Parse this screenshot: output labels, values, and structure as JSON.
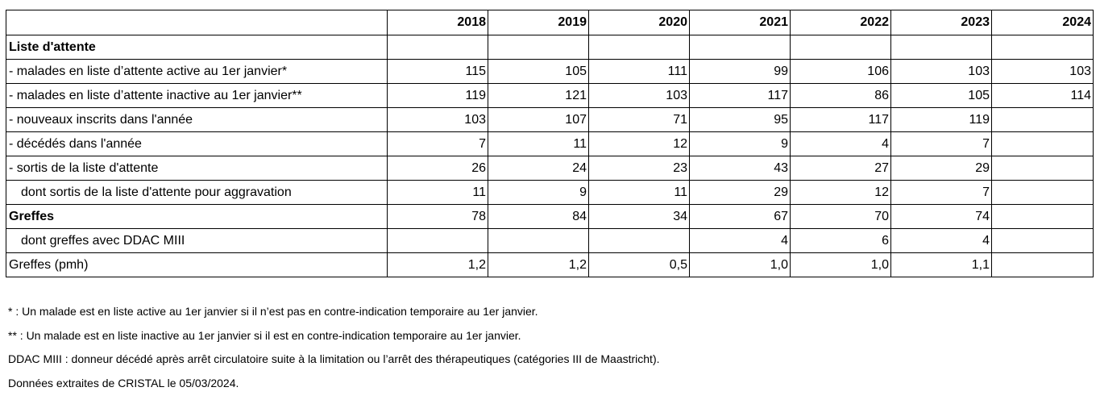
{
  "table": {
    "years": [
      "2018",
      "2019",
      "2020",
      "2021",
      "2022",
      "2023",
      "2024"
    ],
    "rows": [
      {
        "label": "Liste d'attente",
        "style": "bold",
        "values": [
          "",
          "",
          "",
          "",
          "",
          "",
          ""
        ]
      },
      {
        "label": "- malades en liste d’attente active au 1er janvier*",
        "style": "",
        "values": [
          "115",
          "105",
          "111",
          "99",
          "106",
          "103",
          "103"
        ]
      },
      {
        "label": "- malades en liste d’attente inactive au 1er janvier**",
        "style": "",
        "values": [
          "119",
          "121",
          "103",
          "117",
          "86",
          "105",
          "114"
        ]
      },
      {
        "label": "- nouveaux inscrits dans l'année",
        "style": "",
        "values": [
          "103",
          "107",
          "71",
          "95",
          "117",
          "119",
          ""
        ]
      },
      {
        "label": "- décédés dans l'année",
        "style": "",
        "values": [
          "7",
          "11",
          "12",
          "9",
          "4",
          "7",
          ""
        ]
      },
      {
        "label": "- sortis de la liste d'attente",
        "style": "",
        "values": [
          "26",
          "24",
          "23",
          "43",
          "27",
          "29",
          ""
        ]
      },
      {
        "label": "dont sortis de la liste d'attente pour aggravation",
        "style": "indent",
        "values": [
          "11",
          "9",
          "11",
          "29",
          "12",
          "7",
          ""
        ]
      },
      {
        "label": "Greffes",
        "style": "bold",
        "values": [
          "78",
          "84",
          "34",
          "67",
          "70",
          "74",
          ""
        ]
      },
      {
        "label": "dont greffes avec DDAC MIII",
        "style": "indent",
        "values": [
          "",
          "",
          "",
          "4",
          "6",
          "4",
          ""
        ]
      },
      {
        "label": "Greffes (pmh)",
        "style": "",
        "values": [
          "1,2",
          "1,2",
          "0,5",
          "1,0",
          "1,0",
          "1,1",
          ""
        ]
      }
    ]
  },
  "notes": [
    "* : Un malade est en liste active au 1er janvier si il n’est pas en contre-indication temporaire au 1er janvier.",
    "** : Un malade est en liste inactive au 1er janvier si il est en contre-indication temporaire au 1er janvier.",
    "DDAC MIII : donneur décédé après arrêt circulatoire suite à la limitation ou l’arrêt des thérapeutiques (catégories III de Maastricht).",
    "Données extraites de CRISTAL le 05/03/2024."
  ]
}
